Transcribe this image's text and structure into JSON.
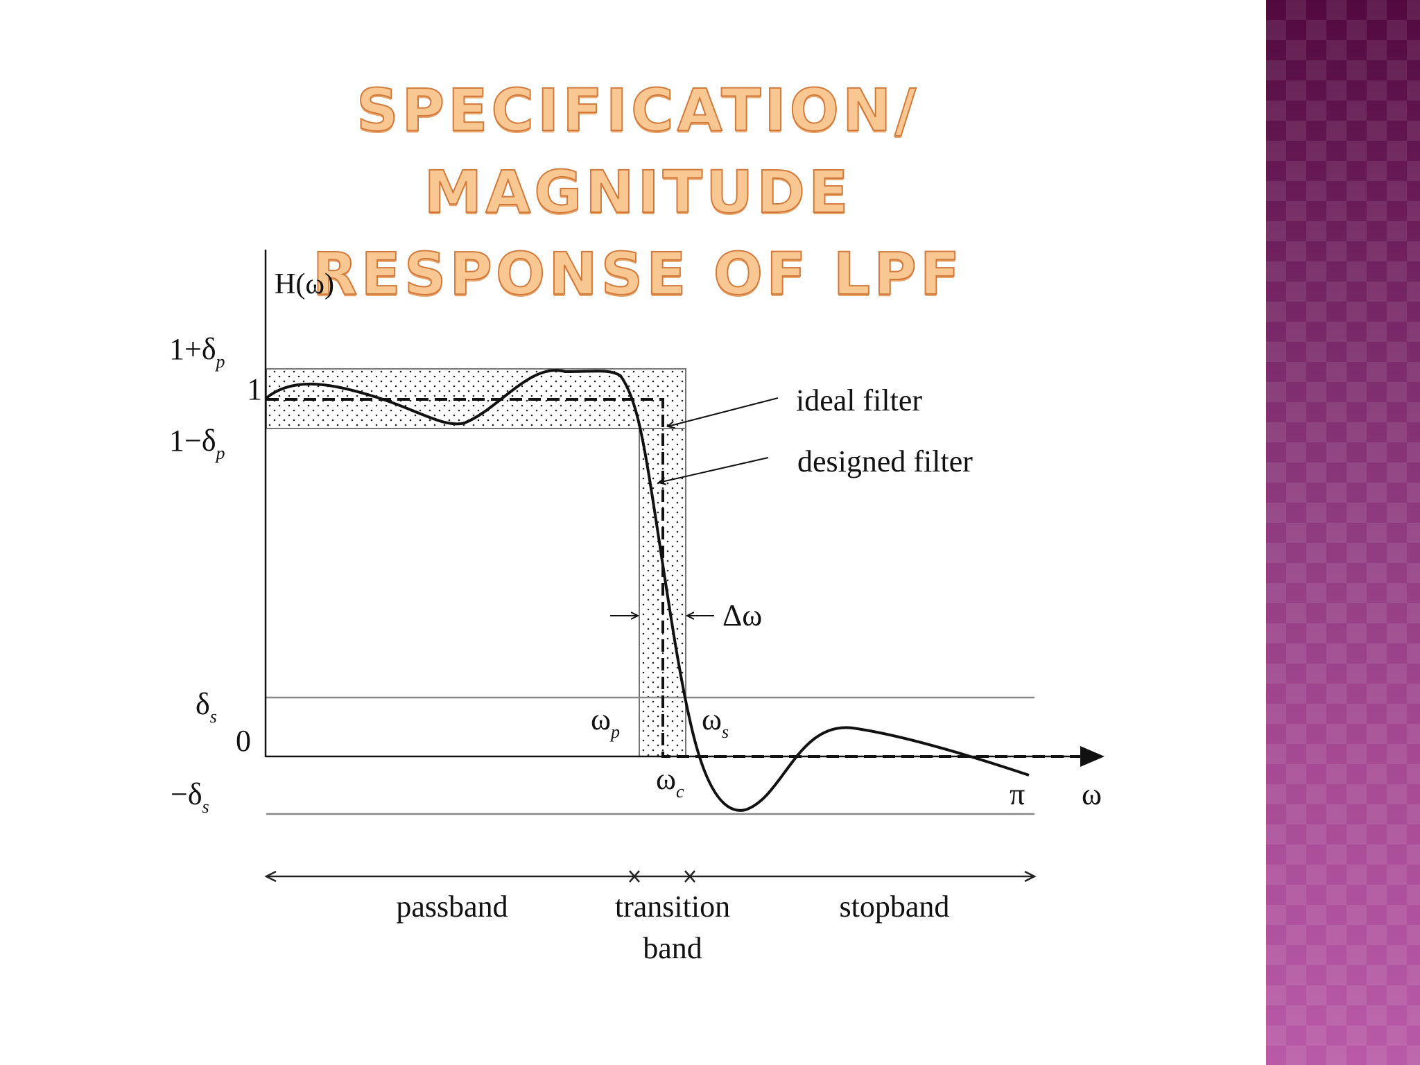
{
  "slide": {
    "title_line1": "SPECIFICATION/ MAGNITUDE",
    "title_line2": "RESPONSE OF LPF"
  },
  "diagram": {
    "y_axis_label": "H(ω)",
    "x_axis_label": "ω",
    "y_ticks": {
      "one_plus_delta_p": "1+δ",
      "one": "1",
      "one_minus_delta_p": "1−δ",
      "delta_s": "δ",
      "zero": "0",
      "minus_delta_s": "−δ",
      "sub_p": "p",
      "sub_s": "s"
    },
    "x_ticks": {
      "omega_p": "ω",
      "omega_s": "ω",
      "omega_c": "ω",
      "sub_p": "p",
      "sub_s": "s",
      "sub_c": "c",
      "pi": "π"
    },
    "annotations": {
      "ideal_filter": "ideal filter",
      "designed_filter": "designed filter",
      "delta_omega": "Δω"
    },
    "bands": {
      "passband": "passband",
      "transition_line1": "transition",
      "transition_line2": "band",
      "stopband": "stopband"
    }
  },
  "colors": {
    "title_fill": "#f9c792",
    "title_stroke": "#d27a3c",
    "panel_top": "#52093f",
    "panel_bottom": "#b85aa6"
  }
}
